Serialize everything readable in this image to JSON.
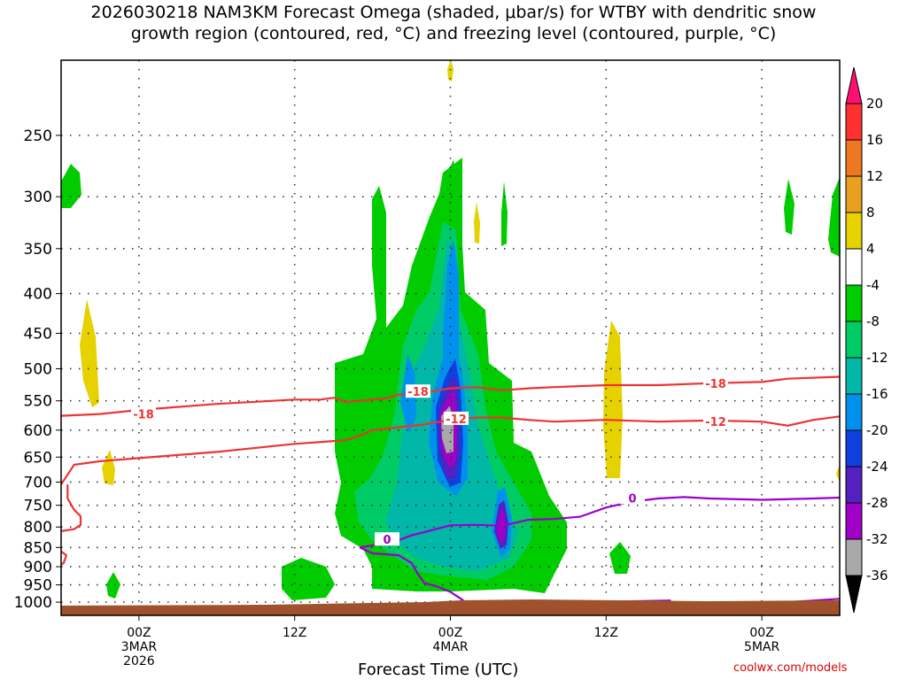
{
  "title": {
    "line1": "2026030218 NAM3KM Forecast Omega (shaded, μbar/s) for WTBY with dendritic snow",
    "line2": "growth region (contoured, red, °C) and freezing level (contoured, purple, °C)"
  },
  "credit": "coolwx.com/models",
  "chart_data": {
    "type": "heatmap",
    "xlabel": "Forecast Time (UTC)",
    "x_ticks": [
      {
        "hours": 0,
        "lines": [
          "00Z",
          "3MAR",
          "2026"
        ]
      },
      {
        "hours": 12,
        "lines": [
          "12Z"
        ]
      },
      {
        "hours": 24,
        "lines": [
          "00Z",
          "4MAR"
        ]
      },
      {
        "hours": 36,
        "lines": [
          "12Z"
        ]
      },
      {
        "hours": 48,
        "lines": [
          "00Z",
          "5MAR"
        ]
      }
    ],
    "x_range_hours": [
      -6,
      54
    ],
    "y_axis": "pressure (hPa), log scale, inverted",
    "y_ticks": [
      250,
      300,
      350,
      400,
      450,
      500,
      550,
      600,
      650,
      700,
      750,
      800,
      850,
      900,
      950,
      1000
    ],
    "y_range": [
      200,
      1040
    ],
    "grid": "dotted",
    "colorbar": {
      "labels": [
        20,
        16,
        12,
        8,
        4,
        -4,
        -8,
        -12,
        -16,
        -20,
        -24,
        -28,
        -32,
        -36
      ],
      "colors": [
        "#ff1070",
        "#ff3030",
        "#ee7722",
        "#e8a020",
        "#e6d200",
        "#ffffff",
        "#00cc00",
        "#00cc66",
        "#00b7a8",
        "#0090ee",
        "#1040e0",
        "#5520c0",
        "#a000c8",
        "#a8a8a8",
        "#000000"
      ]
    },
    "contours": [
      {
        "label": "-18",
        "color": "#ee3333",
        "points": [
          [
            -6,
            575
          ],
          [
            -3,
            572
          ],
          [
            0,
            565
          ],
          [
            6,
            555
          ],
          [
            12,
            548
          ],
          [
            14,
            548
          ],
          [
            15,
            545
          ],
          [
            16,
            552
          ],
          [
            18,
            548
          ],
          [
            19,
            546
          ],
          [
            20,
            540
          ],
          [
            22,
            537
          ],
          [
            24,
            530
          ],
          [
            26,
            528
          ],
          [
            28,
            533
          ],
          [
            30,
            530
          ],
          [
            32,
            528
          ],
          [
            36,
            525
          ],
          [
            40,
            525
          ],
          [
            44,
            522
          ],
          [
            48,
            520
          ],
          [
            50,
            515
          ],
          [
            54,
            512
          ]
        ]
      },
      {
        "label": "-12",
        "color": "#ee3333",
        "points": [
          [
            -6,
            705
          ],
          [
            -5,
            665
          ],
          [
            -3,
            658
          ],
          [
            0,
            652
          ],
          [
            6,
            640
          ],
          [
            12,
            625
          ],
          [
            16,
            618
          ],
          [
            17,
            610
          ],
          [
            18,
            600
          ],
          [
            20,
            595
          ],
          [
            22,
            590
          ],
          [
            24,
            582
          ],
          [
            26,
            578
          ],
          [
            28,
            578
          ],
          [
            30,
            582
          ],
          [
            32,
            585
          ],
          [
            36,
            582
          ],
          [
            40,
            585
          ],
          [
            44,
            583
          ],
          [
            48,
            585
          ],
          [
            50,
            592
          ],
          [
            52,
            582
          ],
          [
            54,
            576
          ]
        ]
      },
      {
        "label": "",
        "color": "#ee3333",
        "points": [
          [
            -5.5,
            705
          ],
          [
            -5.5,
            735
          ],
          [
            -5,
            760
          ],
          [
            -4.5,
            775
          ],
          [
            -4.5,
            795
          ],
          [
            -5,
            805
          ],
          [
            -6,
            810
          ]
        ]
      },
      {
        "label": "",
        "color": "#ee3333",
        "points": [
          [
            -6,
            860
          ],
          [
            -5.6,
            870
          ],
          [
            -5.8,
            890
          ],
          [
            -6,
            895
          ]
        ]
      },
      {
        "label": "0",
        "color": "#9900cc",
        "points": [
          [
            17,
            850
          ],
          [
            18,
            845
          ],
          [
            19,
            838
          ],
          [
            20,
            832
          ],
          [
            21,
            820
          ],
          [
            22,
            812
          ],
          [
            24,
            796
          ],
          [
            26,
            795
          ],
          [
            28,
            797
          ],
          [
            30,
            783
          ],
          [
            32,
            781
          ],
          [
            34,
            776
          ],
          [
            36,
            755
          ],
          [
            38,
            742
          ],
          [
            40,
            735
          ],
          [
            42,
            732
          ],
          [
            44,
            735
          ],
          [
            48,
            738
          ],
          [
            52,
            735
          ],
          [
            54,
            733
          ]
        ]
      },
      {
        "label": "",
        "color": "#9900cc",
        "points": [
          [
            17,
            850
          ],
          [
            18,
            865
          ],
          [
            20,
            870
          ],
          [
            21,
            890
          ],
          [
            21.5,
            920
          ],
          [
            22,
            945
          ],
          [
            23,
            955
          ],
          [
            24,
            970
          ],
          [
            25,
            995
          ]
        ]
      },
      {
        "label": "",
        "color": "#9900cc",
        "points": [
          [
            37,
            998
          ],
          [
            41,
            995
          ]
        ]
      },
      {
        "label": "",
        "color": "#9900cc",
        "points": [
          [
            48,
            1005
          ],
          [
            52,
            995
          ],
          [
            54,
            990
          ]
        ]
      }
    ]
  }
}
